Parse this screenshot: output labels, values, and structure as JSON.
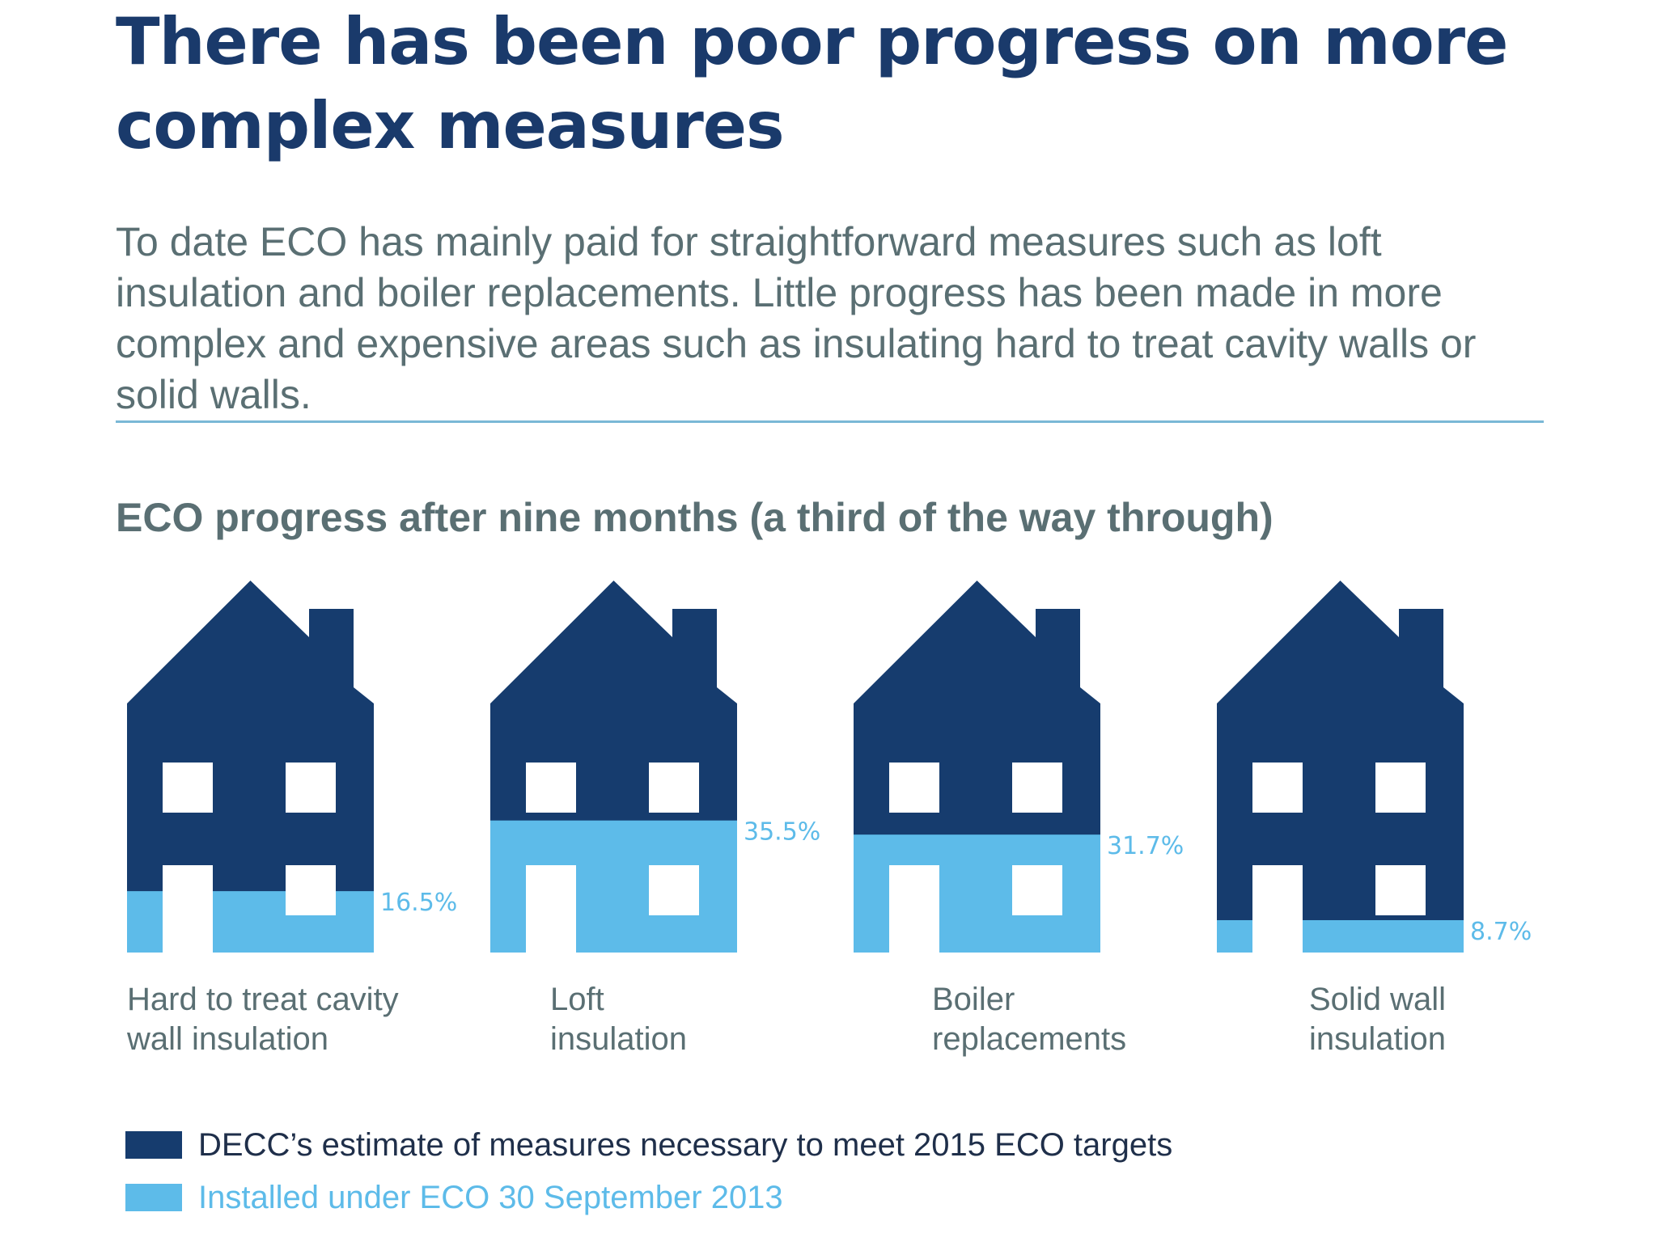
{
  "title": "There has been poor progress on more complex measures",
  "intro": "To date ECO has mainly paid for straightforward measures such as loft insulation and boiler replacements. Little progress has been made in more complex and expensive areas such as insulating hard to treat cavity walls or solid walls.",
  "colors": {
    "dark_blue": "#163c6e",
    "light_blue": "#5dbbe9",
    "title_text": "#1a3a6b",
    "body_text": "#5a6f73",
    "label_text": "#5a6f73",
    "pct_text": "#5dbbe9"
  },
  "chart_data": {
    "type": "bar",
    "title": "ECO progress after nine months (a third of the way through)",
    "categories": [
      "Hard to treat cavity wall insulation",
      "Loft insulation",
      "Boiler replacements",
      "Solid wall insulation"
    ],
    "category_label_lines": [
      [
        "Hard to treat cavity",
        "wall insulation"
      ],
      [
        "Loft",
        "insulation"
      ],
      [
        "Boiler",
        "replacements"
      ],
      [
        "Solid wall",
        "insulation"
      ]
    ],
    "series": [
      {
        "name": "Installed under ECO 30 September 2013",
        "values": [
          16.5,
          35.5,
          31.7,
          8.7
        ]
      }
    ],
    "value_labels": [
      "16.5%",
      "35.5%",
      "31.7%",
      "8.7%"
    ],
    "ylim": [
      0,
      100
    ],
    "legend": [
      {
        "label": "DECC’s estimate of measures necessary to meet 2015 ECO targets",
        "color": "#163c6e"
      },
      {
        "label": "Installed under ECO 30 September 2013",
        "color": "#5dbbe9"
      }
    ],
    "legend_position": "bottom-left"
  }
}
